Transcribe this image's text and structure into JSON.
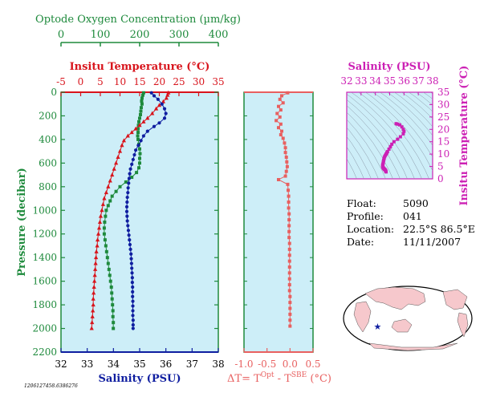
{
  "colors": {
    "oxygen": "#1e8a3c",
    "temperature": "#d8141c",
    "salinity": "#0f1ea0",
    "ts": "#cc20b4",
    "delta": "#e86060",
    "panel_bg": "#cdeef8",
    "frame": "#1e8a3c"
  },
  "info": {
    "float_label": "Float:",
    "float_value": "5090",
    "profile_label": "Profile:",
    "profile_value": "041",
    "location_label": "Location:",
    "location_value": "22.5°S  86.5°E",
    "date_label": "Date:",
    "date_value": "11/11/2007"
  },
  "footer_id": "1206127458.6386276",
  "chart_data": [
    {
      "type": "scatter",
      "name_hint": "profiles",
      "ylabel": "Pressure (decibar)",
      "ylim": [
        2200,
        0
      ],
      "yticks": [
        0,
        200,
        400,
        600,
        800,
        1000,
        1200,
        1400,
        1600,
        1800,
        2000,
        2200
      ],
      "axes": {
        "oxygen": {
          "label": "Optode Oxygen Concentration (µm/kg)",
          "lim": [
            0,
            400
          ],
          "ticks": [
            0,
            100,
            200,
            300,
            400
          ]
        },
        "temperature": {
          "label": "Insitu Temperature (°C)",
          "lim": [
            -5,
            35
          ],
          "ticks": [
            -5,
            0,
            5,
            10,
            15,
            20,
            25,
            30,
            35
          ]
        },
        "salinity": {
          "label": "Salinity (PSU)",
          "lim": [
            32,
            38
          ],
          "ticks": [
            32,
            33,
            34,
            35,
            36,
            37,
            38
          ]
        }
      },
      "series": [
        {
          "name": "Optode Oxygen Concentration",
          "axis": "oxygen",
          "marker": "square",
          "points": [
            [
              210,
              5
            ],
            [
              208,
              25
            ],
            [
              206,
              50
            ],
            [
              205,
              75
            ],
            [
              206,
              100
            ],
            [
              204,
              130
            ],
            [
              203,
              160
            ],
            [
              202,
              190
            ],
            [
              200,
              220
            ],
            [
              198,
              250
            ],
            [
              197,
              280
            ],
            [
              196,
              310
            ],
            [
              196,
              340
            ],
            [
              195,
              370
            ],
            [
              196,
              400
            ],
            [
              198,
              440
            ],
            [
              200,
              480
            ],
            [
              201,
              520
            ],
            [
              200,
              560
            ],
            [
              200,
              600
            ],
            [
              198,
              640
            ],
            [
              192,
              680
            ],
            [
              180,
              720
            ],
            [
              165,
              760
            ],
            [
              150,
              800
            ],
            [
              140,
              840
            ],
            [
              130,
              880
            ],
            [
              125,
              920
            ],
            [
              120,
              960
            ],
            [
              115,
              1000
            ],
            [
              113,
              1050
            ],
            [
              111,
              1100
            ],
            [
              110,
              1150
            ],
            [
              110,
              1200
            ],
            [
              112,
              1250
            ],
            [
              114,
              1300
            ],
            [
              116,
              1350
            ],
            [
              118,
              1400
            ],
            [
              120,
              1450
            ],
            [
              122,
              1500
            ],
            [
              124,
              1550
            ],
            [
              126,
              1600
            ],
            [
              128,
              1650
            ],
            [
              129,
              1700
            ],
            [
              130,
              1750
            ],
            [
              131,
              1800
            ],
            [
              132,
              1850
            ],
            [
              132,
              1900
            ],
            [
              133,
              1950
            ],
            [
              133,
              2000
            ]
          ]
        },
        {
          "name": "Insitu Temperature",
          "axis": "temperature",
          "marker": "triangle",
          "points": [
            [
              22.3,
              5
            ],
            [
              22.1,
              25
            ],
            [
              21.8,
              50
            ],
            [
              21.0,
              80
            ],
            [
              20.0,
              110
            ],
            [
              19.2,
              140
            ],
            [
              18.2,
              180
            ],
            [
              17.0,
              220
            ],
            [
              16.0,
              250
            ],
            [
              15.0,
              280
            ],
            [
              14.0,
              310
            ],
            [
              13.0,
              340
            ],
            [
              12.0,
              370
            ],
            [
              11.0,
              410
            ],
            [
              10.5,
              450
            ],
            [
              10.0,
              500
            ],
            [
              9.5,
              550
            ],
            [
              9.0,
              600
            ],
            [
              8.5,
              650
            ],
            [
              8.0,
              700
            ],
            [
              7.5,
              750
            ],
            [
              7.0,
              800
            ],
            [
              6.5,
              850
            ],
            [
              6.0,
              900
            ],
            [
              5.7,
              950
            ],
            [
              5.4,
              1000
            ],
            [
              5.1,
              1050
            ],
            [
              4.9,
              1100
            ],
            [
              4.7,
              1150
            ],
            [
              4.5,
              1200
            ],
            [
              4.3,
              1250
            ],
            [
              4.2,
              1300
            ],
            [
              4.0,
              1350
            ],
            [
              3.9,
              1400
            ],
            [
              3.8,
              1450
            ],
            [
              3.7,
              1500
            ],
            [
              3.6,
              1550
            ],
            [
              3.5,
              1600
            ],
            [
              3.4,
              1650
            ],
            [
              3.3,
              1700
            ],
            [
              3.2,
              1750
            ],
            [
              3.2,
              1800
            ],
            [
              3.1,
              1850
            ],
            [
              3.0,
              1900
            ],
            [
              2.9,
              1950
            ],
            [
              2.8,
              2000
            ]
          ]
        },
        {
          "name": "Salinity",
          "axis": "salinity",
          "marker": "circle",
          "points": [
            [
              35.45,
              5
            ],
            [
              35.55,
              30
            ],
            [
              35.7,
              60
            ],
            [
              35.85,
              100
            ],
            [
              35.95,
              140
            ],
            [
              36.0,
              180
            ],
            [
              35.95,
              220
            ],
            [
              35.75,
              260
            ],
            [
              35.55,
              290
            ],
            [
              35.3,
              330
            ],
            [
              35.15,
              370
            ],
            [
              35.05,
              410
            ],
            [
              34.95,
              450
            ],
            [
              34.85,
              490
            ],
            [
              34.8,
              530
            ],
            [
              34.75,
              570
            ],
            [
              34.7,
              610
            ],
            [
              34.65,
              650
            ],
            [
              34.62,
              690
            ],
            [
              34.6,
              730
            ],
            [
              34.58,
              770
            ],
            [
              34.56,
              810
            ],
            [
              34.55,
              850
            ],
            [
              34.53,
              890
            ],
            [
              34.52,
              930
            ],
            [
              34.51,
              970
            ],
            [
              34.51,
              1010
            ],
            [
              34.52,
              1050
            ],
            [
              34.53,
              1090
            ],
            [
              34.55,
              1130
            ],
            [
              34.57,
              1170
            ],
            [
              34.59,
              1210
            ],
            [
              34.61,
              1250
            ],
            [
              34.63,
              1290
            ],
            [
              34.65,
              1330
            ],
            [
              34.67,
              1370
            ],
            [
              34.68,
              1410
            ],
            [
              34.69,
              1450
            ],
            [
              34.7,
              1490
            ],
            [
              34.71,
              1530
            ],
            [
              34.72,
              1570
            ],
            [
              34.72,
              1610
            ],
            [
              34.73,
              1650
            ],
            [
              34.73,
              1690
            ],
            [
              34.73,
              1730
            ],
            [
              34.74,
              1770
            ],
            [
              34.74,
              1810
            ],
            [
              34.74,
              1850
            ],
            [
              34.74,
              1890
            ],
            [
              34.75,
              1930
            ],
            [
              34.75,
              1970
            ],
            [
              34.75,
              2000
            ]
          ]
        }
      ]
    },
    {
      "type": "scatter",
      "name_hint": "delta",
      "xlabel": "ΔT= T",
      "xlabel_sup1": "Opt",
      "xlabel_mid": " - T",
      "xlabel_sup2": "SBE",
      "xlabel_end": " (°C)",
      "xlim": [
        -1.0,
        0.5
      ],
      "xticks": [
        "-1.0",
        "-0.5",
        "0.0",
        "0.5"
      ],
      "ylim": [
        2200,
        0
      ],
      "points": [
        [
          -0.05,
          5
        ],
        [
          -0.18,
          30
        ],
        [
          -0.22,
          60
        ],
        [
          -0.15,
          90
        ],
        [
          -0.25,
          120
        ],
        [
          -0.2,
          150
        ],
        [
          -0.28,
          180
        ],
        [
          -0.22,
          210
        ],
        [
          -0.3,
          240
        ],
        [
          -0.2,
          270
        ],
        [
          -0.25,
          300
        ],
        [
          -0.18,
          330
        ],
        [
          -0.2,
          360
        ],
        [
          -0.15,
          390
        ],
        [
          -0.12,
          430
        ],
        [
          -0.1,
          470
        ],
        [
          -0.1,
          510
        ],
        [
          -0.08,
          550
        ],
        [
          -0.07,
          590
        ],
        [
          -0.06,
          630
        ],
        [
          -0.08,
          670
        ],
        [
          -0.1,
          710
        ],
        [
          -0.25,
          740
        ],
        [
          -0.05,
          780
        ],
        [
          -0.04,
          830
        ],
        [
          -0.03,
          880
        ],
        [
          -0.03,
          930
        ],
        [
          -0.03,
          980
        ],
        [
          -0.02,
          1030
        ],
        [
          -0.02,
          1080
        ],
        [
          -0.02,
          1130
        ],
        [
          -0.02,
          1180
        ],
        [
          -0.02,
          1230
        ],
        [
          -0.01,
          1280
        ],
        [
          -0.01,
          1330
        ],
        [
          -0.01,
          1380
        ],
        [
          -0.01,
          1430
        ],
        [
          -0.01,
          1480
        ],
        [
          -0.01,
          1530
        ],
        [
          -0.01,
          1580
        ],
        [
          -0.01,
          1630
        ],
        [
          -0.01,
          1680
        ],
        [
          0.0,
          1730
        ],
        [
          0.0,
          1780
        ],
        [
          0.0,
          1830
        ],
        [
          0.0,
          1880
        ],
        [
          0.0,
          1930
        ],
        [
          0.0,
          1980
        ]
      ]
    },
    {
      "type": "scatter",
      "name_hint": "ts",
      "xlabel": "Salinity (PSU)",
      "ylabel": "Insitu Temperature (°C)",
      "xlim": [
        32,
        38
      ],
      "ylim": [
        0,
        35
      ],
      "xticks": [
        32,
        33,
        34,
        35,
        36,
        37,
        38
      ],
      "yticks": [
        0,
        5,
        10,
        15,
        20,
        25,
        30,
        35
      ],
      "points": [
        [
          35.45,
          22.3
        ],
        [
          35.55,
          22.1
        ],
        [
          35.7,
          21.8
        ],
        [
          35.85,
          21.0
        ],
        [
          35.95,
          20.0
        ],
        [
          36.0,
          19.2
        ],
        [
          35.95,
          18.2
        ],
        [
          35.75,
          17.0
        ],
        [
          35.55,
          16.0
        ],
        [
          35.3,
          15.0
        ],
        [
          35.15,
          14.0
        ],
        [
          35.05,
          13.0
        ],
        [
          34.95,
          12.0
        ],
        [
          34.85,
          11.0
        ],
        [
          34.8,
          10.5
        ],
        [
          34.75,
          10.0
        ],
        [
          34.7,
          9.5
        ],
        [
          34.65,
          9.0
        ],
        [
          34.62,
          8.5
        ],
        [
          34.6,
          8.0
        ],
        [
          34.58,
          7.5
        ],
        [
          34.56,
          7.0
        ],
        [
          34.55,
          6.5
        ],
        [
          34.53,
          6.0
        ],
        [
          34.52,
          5.7
        ],
        [
          34.51,
          5.4
        ],
        [
          34.51,
          5.1
        ],
        [
          34.52,
          4.9
        ],
        [
          34.53,
          4.7
        ],
        [
          34.55,
          4.5
        ],
        [
          34.57,
          4.3
        ],
        [
          34.59,
          4.2
        ],
        [
          34.61,
          4.0
        ],
        [
          34.63,
          3.9
        ],
        [
          34.65,
          3.8
        ],
        [
          34.67,
          3.7
        ],
        [
          34.7,
          3.5
        ],
        [
          34.72,
          3.3
        ],
        [
          34.73,
          3.1
        ],
        [
          34.75,
          2.8
        ]
      ]
    },
    {
      "type": "map",
      "marker_lon": 86.5,
      "marker_lat": -22.5
    }
  ]
}
